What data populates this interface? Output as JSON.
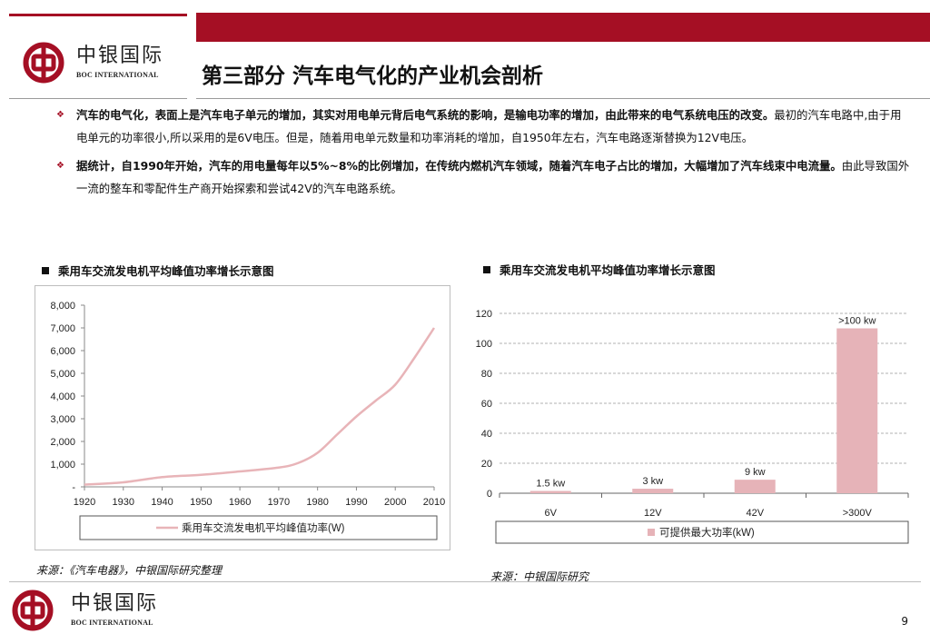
{
  "brand": {
    "name_cn": "中银国际",
    "name_en": "BOC INTERNATIONAL",
    "accent": "#a50f24"
  },
  "title": "第三部分  汽车电气化的产业机会剖析",
  "bullets": [
    {
      "bold": "汽车的电气化，表面上是汽车电子单元的增加，其实对用电单元背后电气系统的影响，是输电功率的增加，由此带来的电气系统电压的改变。",
      "text": "最初的汽车电路中,由于用电单元的功率很小,所以采用的是6V电压。但是，随着用电单元数量和功率消耗的增加，自1950年左右，汽车电路逐渐替换为12V电压。"
    },
    {
      "bold": "据统计，自1990年开始，汽车的用电量每年以5%~8%的比例增加，在传统内燃机汽车领域，随着汽车电子占比的增加，大幅增加了汽车线束中电流量。",
      "text": "由此导致国外一流的整车和零配件生产商开始探索和尝试42V的汽车电路系统。"
    }
  ],
  "chart_data": [
    {
      "type": "line",
      "title": "乘用车交流发电机平均峰值功率增长示意图",
      "x": [
        1920,
        1930,
        1940,
        1950,
        1960,
        1970,
        1975,
        1980,
        1985,
        1990,
        1995,
        2000,
        2005,
        2010
      ],
      "series": [
        {
          "name": "乘用车交流发电机平均峰值功率(W)",
          "color": "#e8b4b8",
          "values": [
            100,
            200,
            430,
            530,
            680,
            850,
            1050,
            1500,
            2300,
            3100,
            3800,
            4500,
            5700,
            7000
          ]
        }
      ],
      "x_ticks": [
        "1920",
        "1930",
        "1940",
        "1950",
        "1960",
        "1970",
        "1980",
        "1990",
        "2000",
        "2010"
      ],
      "y_ticks": [
        "-",
        "1,000",
        "2,000",
        "3,000",
        "4,000",
        "5,000",
        "6,000",
        "7,000",
        "8,000"
      ],
      "ylim": [
        0,
        8000
      ],
      "xlim": [
        1920,
        2010
      ],
      "grid": false,
      "legend_position": "bottom"
    },
    {
      "type": "bar",
      "title": "乘用车交流发电机平均峰值功率增长示意图",
      "categories": [
        "6V",
        "12V",
        "42V",
        ">300V"
      ],
      "series": [
        {
          "name": "可提供最大功率(kW)",
          "color": "#e6b3b8",
          "values": [
            1.5,
            3,
            9,
            110
          ]
        }
      ],
      "data_labels": [
        "1.5 kw",
        "3 kw",
        "9 kw",
        ">100 kw"
      ],
      "y_ticks": [
        "0",
        "20",
        "40",
        "60",
        "80",
        "100",
        "120"
      ],
      "ylim": [
        0,
        120
      ],
      "grid": true,
      "legend_position": "bottom"
    }
  ],
  "sources": {
    "left": "来源：《汽车电器》，中银国际研究整理",
    "right": "来源：中银国际研究"
  },
  "page_number": "9"
}
